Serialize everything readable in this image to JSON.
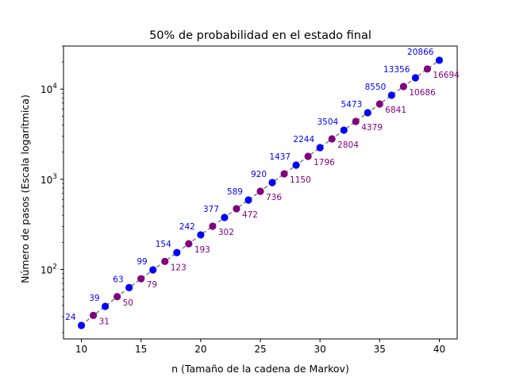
{
  "chart_data": {
    "type": "line",
    "title": "50% de probabilidad en el estado final",
    "xlabel": "n (Tamaño de la cadena de Markov)",
    "ylabel": "Número de pasos (Escala logarítmica)",
    "xlim": [
      8.5,
      41.5
    ],
    "ylim": [
      17,
      30000
    ],
    "yscale": "log",
    "x_ticks": [
      10,
      15,
      20,
      25,
      30,
      35,
      40
    ],
    "y_ticks": [
      {
        "value": 100,
        "base": "10",
        "exp": "2"
      },
      {
        "value": 1000,
        "base": "10",
        "exp": "3"
      },
      {
        "value": 10000,
        "base": "10",
        "exp": "4"
      }
    ],
    "grid": false,
    "line_color": "#808080",
    "series": [
      {
        "color": "#0000ff",
        "label_side": "left",
        "x": [
          10,
          12,
          14,
          16,
          18,
          20,
          22,
          24,
          26,
          28,
          30,
          32,
          34,
          36,
          38,
          40
        ],
        "values": [
          24,
          39,
          63,
          99,
          154,
          242,
          377,
          589,
          920,
          1437,
          2244,
          3504,
          5473,
          8550,
          13356,
          20866
        ]
      },
      {
        "color": "#800080",
        "label_side": "right",
        "x": [
          11,
          13,
          15,
          17,
          19,
          21,
          23,
          25,
          27,
          29,
          31,
          33,
          35,
          37,
          39
        ],
        "values": [
          31,
          50,
          79,
          123,
          193,
          302,
          472,
          736,
          1150,
          1796,
          2804,
          4379,
          6841,
          10686,
          16694
        ]
      }
    ]
  }
}
